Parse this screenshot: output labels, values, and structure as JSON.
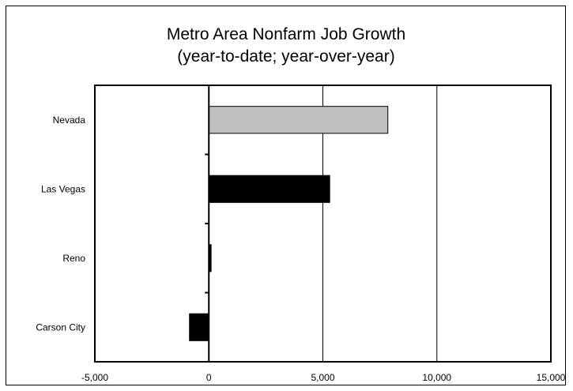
{
  "chart_data": {
    "type": "bar",
    "orientation": "horizontal",
    "title": [
      "Metro Area Nonfarm Job Growth",
      "(year-to-date; year-over-year)"
    ],
    "categories": [
      "Nevada",
      "Las Vegas",
      "Reno",
      "Carson City"
    ],
    "values": [
      7850,
      5300,
      100,
      -850
    ],
    "bar_colors": [
      "#c0c0c0",
      "#000000",
      "#000000",
      "#000000"
    ],
    "xlim": [
      -5000,
      15000
    ],
    "xticks": [
      -5000,
      0,
      5000,
      10000,
      15000
    ],
    "xtick_labels": [
      "-5,000",
      "0",
      "5,000",
      "10,000",
      "15,000"
    ],
    "grid": "vertical",
    "legend": "none"
  }
}
